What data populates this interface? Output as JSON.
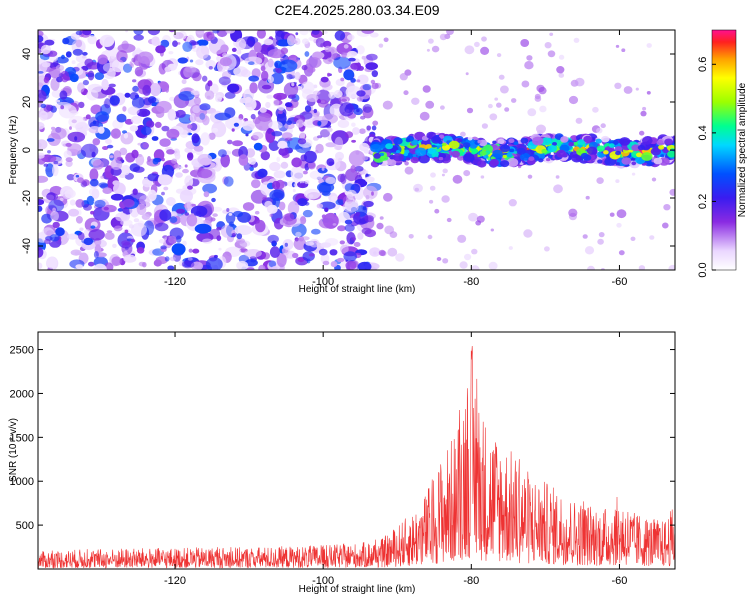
{
  "chart_data": [
    {
      "type": "heatmap",
      "title": "C2E4.2025.280.03.34.E09",
      "xlabel": "Height of straight line (km)",
      "ylabel": "Frequency (Hz)",
      "xlim": [
        -138.5,
        -52.5
      ],
      "ylim": [
        -50,
        50
      ],
      "x_ticks": [
        "-120",
        "-100",
        "-80",
        "-60"
      ],
      "x_tick_values": [
        -120,
        -100,
        -80,
        -60
      ],
      "y_ticks": [
        "-40",
        "-20",
        "0",
        "20",
        "40"
      ],
      "y_tick_values": [
        -40,
        -20,
        0,
        20,
        40
      ],
      "colorbar": {
        "label": "Normalized spectral amplitude",
        "range": [
          0,
          0.7
        ],
        "ticks": [
          "0.0",
          "0.2",
          "0.4",
          "0.6"
        ],
        "tick_values": [
          0,
          0.2,
          0.4,
          0.6
        ],
        "colormap": "rainbow"
      },
      "features": {
        "broadband_noise_region_km": [
          -138.5,
          -93
        ],
        "narrowband_signal_region_km": [
          -93,
          -52.5
        ],
        "signal_band_center_hz": 0,
        "signal_band_halfwidth_hz": 5
      }
    },
    {
      "type": "line",
      "title": "",
      "xlabel": "Height of straight line (km)",
      "ylabel": "SNR (10 * v/v)",
      "xlim": [
        -138.5,
        -52.5
      ],
      "ylim": [
        0,
        2700
      ],
      "x_ticks": [
        "-120",
        "-100",
        "-80",
        "-60"
      ],
      "x_tick_values": [
        -120,
        -100,
        -80,
        -60
      ],
      "y_ticks": [
        "500",
        "1000",
        "1500",
        "2000",
        "2500"
      ],
      "y_tick_values": [
        500,
        1000,
        1500,
        2000,
        2500
      ],
      "color": "#ee3333",
      "series": [
        {
          "name": "SNR",
          "x": [
            -138.5,
            -135,
            -130,
            -125,
            -120,
            -115,
            -110,
            -105,
            -100,
            -95,
            -92,
            -90,
            -88,
            -86,
            -84,
            -82,
            -80,
            -79,
            -78,
            -76,
            -74,
            -72,
            -70,
            -68,
            -66,
            -64,
            -62,
            -60,
            -58,
            -56,
            -54,
            -52.5
          ],
          "envelope": [
            200,
            220,
            230,
            240,
            240,
            250,
            250,
            260,
            270,
            300,
            350,
            500,
            650,
            900,
            1300,
            1600,
            2650,
            2000,
            1700,
            1500,
            1300,
            1100,
            1000,
            900,
            800,
            750,
            700,
            850,
            650,
            600,
            550,
            750
          ]
        }
      ]
    }
  ]
}
